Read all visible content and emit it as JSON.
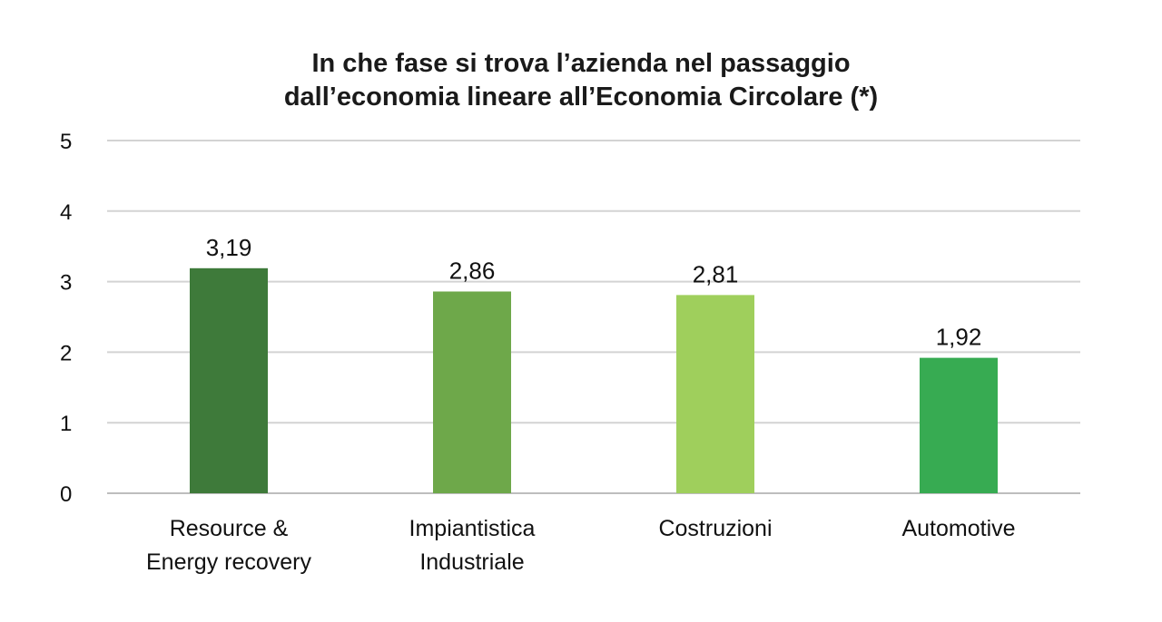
{
  "chart_data": {
    "type": "bar",
    "title_lines": [
      "In che fase si trova l’azienda nel passaggio",
      "dall’economia lineare all’Economia Circolare (*)"
    ],
    "categories": [
      [
        "Resource &",
        "Energy recovery"
      ],
      [
        "Impiantistica",
        "Industriale"
      ],
      [
        "Costruzioni"
      ],
      [
        "Automotive"
      ]
    ],
    "values": [
      3.19,
      2.86,
      2.81,
      1.92
    ],
    "value_labels": [
      "3,19",
      "2,86",
      "2,81",
      "1,92"
    ],
    "bar_colors": [
      "#3e7a3a",
      "#6ea84a",
      "#9fcf5c",
      "#37ab52"
    ],
    "ylim": [
      0,
      5
    ],
    "yticks": [
      0,
      1,
      2,
      3,
      4,
      5
    ],
    "grid": true,
    "legend": "none"
  }
}
